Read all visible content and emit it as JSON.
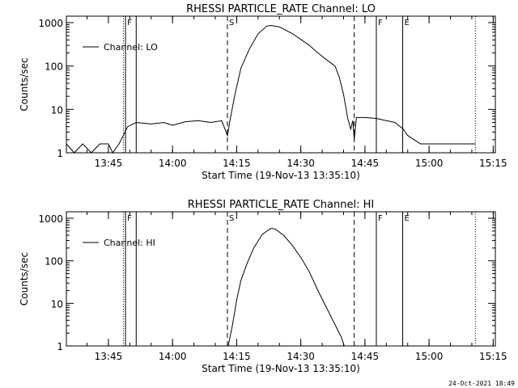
{
  "chart_data": [
    {
      "type": "line",
      "title": "RHESSI PARTICLE_RATE Channel: LO",
      "xlabel": "Start Time (19-Nov-13 13:35:10)",
      "ylabel": "Counts/sec",
      "y_scale": "log",
      "ylim": [
        1,
        1000
      ],
      "y_ticks": [
        "1",
        "10",
        "100",
        "1000"
      ],
      "xlim": [
        "13:35:10",
        "15:15:30"
      ],
      "x_ticks": [
        "13:45",
        "14:00",
        "14:15",
        "14:30",
        "14:45",
        "15:00",
        "15:15"
      ],
      "legend": {
        "label": "Channel: LO",
        "position": "top-left"
      },
      "grid": false,
      "markers": [
        {
          "label": "",
          "time": "13:48:30",
          "style": "dotted"
        },
        {
          "label": "F",
          "time": "13:49:00",
          "style": "solid"
        },
        {
          "label": "",
          "time": "13:51:30",
          "style": "solid"
        },
        {
          "label": "S",
          "time": "14:12:50",
          "style": "dashed"
        },
        {
          "label": "",
          "time": "14:42:30",
          "style": "dashed"
        },
        {
          "label": "F",
          "time": "14:47:40",
          "style": "solid"
        },
        {
          "label": "E",
          "time": "14:53:50",
          "style": "solid"
        },
        {
          "label": "",
          "time": "15:10:50",
          "style": "dotted"
        }
      ],
      "series": [
        {
          "name": "Channel: LO",
          "points": [
            [
              "13:35:10",
              1.6
            ],
            [
              "13:37:00",
              1.0
            ],
            [
              "13:39:00",
              1.6
            ],
            [
              "13:41:00",
              1.0
            ],
            [
              "13:43:00",
              1.6
            ],
            [
              "13:45:00",
              1.6
            ],
            [
              "13:46:00",
              1.0
            ],
            [
              "13:47:30",
              1.6
            ],
            [
              "13:48:30",
              2.5
            ],
            [
              "13:49:30",
              4.0
            ],
            [
              "13:51:30",
              5.0
            ],
            [
              "13:55:00",
              4.6
            ],
            [
              "13:58:00",
              5.0
            ],
            [
              "14:00:00",
              4.3
            ],
            [
              "14:03:00",
              5.2
            ],
            [
              "14:06:00",
              5.5
            ],
            [
              "14:09:00",
              5.0
            ],
            [
              "14:11:30",
              5.5
            ],
            [
              "14:12:50",
              2.5
            ],
            [
              "14:13:30",
              6.0
            ],
            [
              "14:14:30",
              20
            ],
            [
              "14:16:00",
              90
            ],
            [
              "14:18:00",
              250
            ],
            [
              "14:20:00",
              550
            ],
            [
              "14:22:00",
              830
            ],
            [
              "14:23:00",
              860
            ],
            [
              "14:25:00",
              800
            ],
            [
              "14:28:00",
              560
            ],
            [
              "14:30:00",
              410
            ],
            [
              "14:32:00",
              300
            ],
            [
              "14:34:00",
              200
            ],
            [
              "14:36:00",
              140
            ],
            [
              "14:38:00",
              100
            ],
            [
              "14:39:00",
              55
            ],
            [
              "14:40:00",
              22
            ],
            [
              "14:41:00",
              6.0
            ],
            [
              "14:41:40",
              3.5
            ],
            [
              "14:42:10",
              5.5
            ],
            [
              "14:42:30",
              2.0
            ],
            [
              "14:43:00",
              6.5
            ],
            [
              "14:45:00",
              6.5
            ],
            [
              "14:47:40",
              6.2
            ],
            [
              "14:50:00",
              5.5
            ],
            [
              "14:52:00",
              5.0
            ],
            [
              "14:54:00",
              3.5
            ],
            [
              "14:55:00",
              2.5
            ],
            [
              "14:56:30",
              2.0
            ],
            [
              "14:58:00",
              1.6
            ],
            [
              "15:00:00",
              1.6
            ],
            [
              "15:05:00",
              1.6
            ],
            [
              "15:10:50",
              1.6
            ]
          ]
        }
      ]
    },
    {
      "type": "line",
      "title": "RHESSI PARTICLE_RATE Channel: HI",
      "xlabel": "Start Time (19-Nov-13 13:35:10)",
      "ylabel": "Counts/sec",
      "y_scale": "log",
      "ylim": [
        1,
        1000
      ],
      "y_ticks": [
        "1",
        "10",
        "100",
        "1000"
      ],
      "xlim": [
        "13:35:10",
        "15:15:30"
      ],
      "x_ticks": [
        "13:45",
        "14:00",
        "14:15",
        "14:30",
        "14:45",
        "15:00",
        "15:15"
      ],
      "legend": {
        "label": "Channel: HI",
        "position": "top-left"
      },
      "grid": false,
      "markers": [
        {
          "label": "",
          "time": "13:48:30",
          "style": "dotted"
        },
        {
          "label": "F",
          "time": "13:49:00",
          "style": "solid"
        },
        {
          "label": "",
          "time": "13:51:30",
          "style": "solid"
        },
        {
          "label": "S",
          "time": "14:12:50",
          "style": "dashed"
        },
        {
          "label": "",
          "time": "14:42:30",
          "style": "dashed"
        },
        {
          "label": "F",
          "time": "14:47:40",
          "style": "solid"
        },
        {
          "label": "E",
          "time": "14:53:50",
          "style": "solid"
        },
        {
          "label": "",
          "time": "15:10:50",
          "style": "dotted"
        }
      ],
      "series": [
        {
          "name": "Channel: HI",
          "points": [
            [
              "14:13:00",
              1.0
            ],
            [
              "14:14:00",
              3.0
            ],
            [
              "14:15:00",
              12
            ],
            [
              "14:16:00",
              35
            ],
            [
              "14:17:30",
              90
            ],
            [
              "14:19:00",
              200
            ],
            [
              "14:21:00",
              420
            ],
            [
              "14:23:00",
              580
            ],
            [
              "14:24:00",
              560
            ],
            [
              "14:26:00",
              400
            ],
            [
              "14:28:00",
              230
            ],
            [
              "14:30:00",
              120
            ],
            [
              "14:32:00",
              55
            ],
            [
              "14:34:00",
              20
            ],
            [
              "14:36:00",
              8.0
            ],
            [
              "14:37:30",
              4.0
            ],
            [
              "14:38:30",
              2.5
            ],
            [
              "14:39:30",
              1.6
            ],
            [
              "14:40:10",
              1.0
            ]
          ]
        }
      ]
    }
  ],
  "footer": {
    "date": "24-Oct-2021 18:49"
  }
}
